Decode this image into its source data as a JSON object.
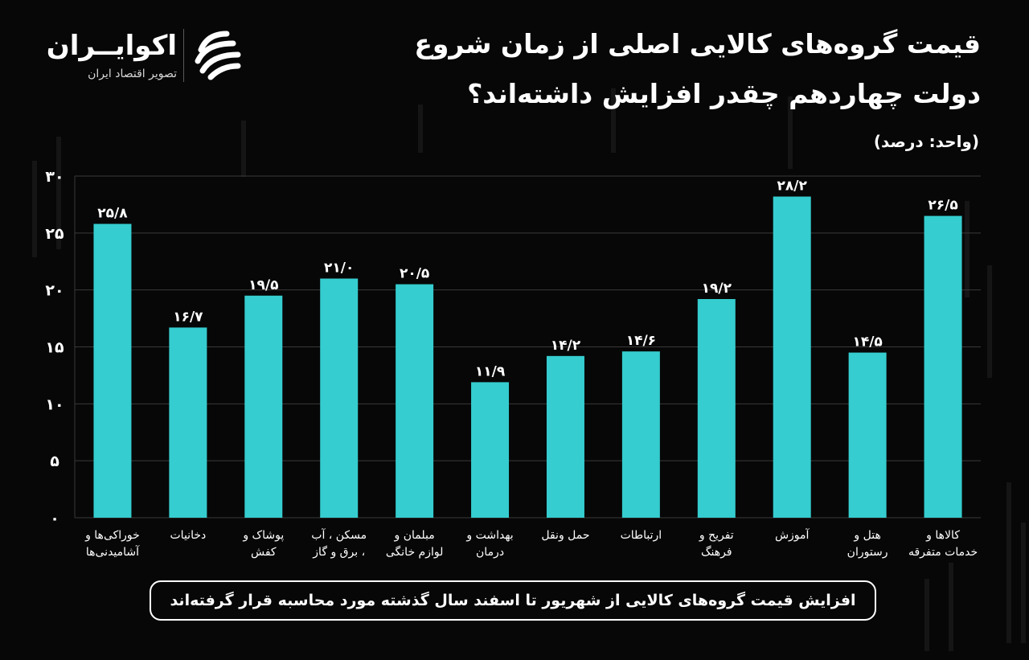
{
  "header": {
    "title_line1": "قیمت گروه‌های کالایی اصلی از زمان شروع",
    "title_line2": "دولت چهاردهم چقدر افزایش داشته‌اند؟",
    "unit": "(واحد: درصد)"
  },
  "logo": {
    "name": "اکوایــران",
    "tagline": "تصویر اقتصاد ایران"
  },
  "footnote": "افزایش قیمت گروه‌های کالایی از شهریور تا اسفند سال گذشته مورد محاسبه قرار گرفته‌اند",
  "colors": {
    "background": "#070707",
    "bar": "#35cdcf",
    "gridline": "#3a3a3a",
    "text": "#ffffff"
  },
  "chart_data": {
    "type": "bar",
    "categories": [
      [
        "خوراکی‌ها و",
        "آشامیدنی‌ها"
      ],
      [
        "دخانیات"
      ],
      [
        "پوشاک و",
        "کفش"
      ],
      [
        "مسکن ، آب",
        "، برق و گاز"
      ],
      [
        "مبلمان و",
        "لوازم خانگی"
      ],
      [
        "بهداشت و",
        "درمان"
      ],
      [
        "حمل ونقل"
      ],
      [
        "ارتباطات"
      ],
      [
        "تفریح و",
        "فرهنگ"
      ],
      [
        "آموزش"
      ],
      [
        "هتل و",
        "رستوران"
      ],
      [
        "کالاها و",
        "خدمات متفرقه"
      ]
    ],
    "values": [
      25.8,
      16.7,
      19.5,
      21.0,
      20.5,
      11.9,
      14.2,
      14.6,
      19.2,
      28.2,
      14.5,
      26.5
    ],
    "value_labels": [
      "۲۵/۸",
      "۱۶/۷",
      "۱۹/۵",
      "۲۱/۰",
      "۲۰/۵",
      "۱۱/۹",
      "۱۴/۲",
      "۱۴/۶",
      "۱۹/۲",
      "۲۸/۲",
      "۱۴/۵",
      "۲۶/۵"
    ],
    "ylim": [
      0,
      30
    ],
    "yticks": [
      0,
      5,
      10,
      15,
      20,
      25,
      30
    ],
    "ytick_labels": [
      "۰",
      "۵",
      "۱۰",
      "۱۵",
      "۲۰",
      "۲۵",
      "۳۰"
    ],
    "grid": true,
    "xlabel": "",
    "ylabel": ""
  }
}
